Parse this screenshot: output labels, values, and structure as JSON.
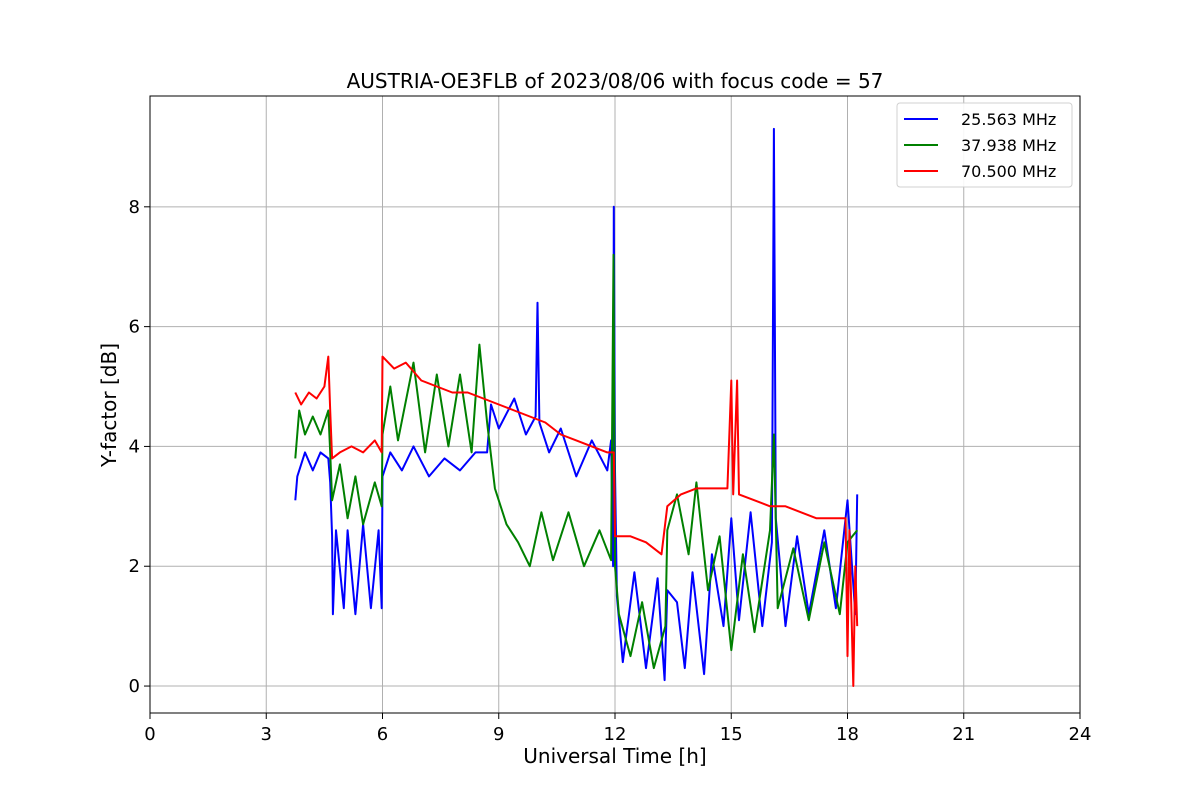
{
  "chart_data": {
    "type": "line",
    "title": "AUSTRIA-OE3FLB of 2023/08/06 with focus code = 57",
    "xlabel": "Universal Time [h]",
    "ylabel": "Y-factor [dB]",
    "xlim": [
      0,
      24
    ],
    "ylim": [
      -0.45,
      9.85
    ],
    "xticks": [
      0,
      3,
      6,
      9,
      12,
      15,
      18,
      21,
      24
    ],
    "xtick_labels": [
      "0",
      "3",
      "6",
      "9",
      "12",
      "15",
      "18",
      "21",
      "24"
    ],
    "yticks": [
      0,
      2,
      4,
      6,
      8
    ],
    "ytick_labels": [
      "0",
      "2",
      "4",
      "6",
      "8"
    ],
    "grid": true,
    "legend_position": "top-right",
    "series": [
      {
        "name": "25.563 MHz",
        "color": "#0000ff",
        "points": [
          [
            3.75,
            3.1
          ],
          [
            3.8,
            3.5
          ],
          [
            4.0,
            3.9
          ],
          [
            4.2,
            3.6
          ],
          [
            4.4,
            3.9
          ],
          [
            4.6,
            3.8
          ],
          [
            4.65,
            3.4
          ],
          [
            4.7,
            2.5
          ],
          [
            4.72,
            1.2
          ],
          [
            4.8,
            2.6
          ],
          [
            5.0,
            1.3
          ],
          [
            5.1,
            2.6
          ],
          [
            5.3,
            1.2
          ],
          [
            5.5,
            2.7
          ],
          [
            5.7,
            1.3
          ],
          [
            5.9,
            2.6
          ],
          [
            5.98,
            1.3
          ],
          [
            6.0,
            3.5
          ],
          [
            6.2,
            3.9
          ],
          [
            6.5,
            3.6
          ],
          [
            6.8,
            4.0
          ],
          [
            7.2,
            3.5
          ],
          [
            7.6,
            3.8
          ],
          [
            8.0,
            3.6
          ],
          [
            8.4,
            3.9
          ],
          [
            8.7,
            3.9
          ],
          [
            8.8,
            4.7
          ],
          [
            9.0,
            4.3
          ],
          [
            9.4,
            4.8
          ],
          [
            9.7,
            4.2
          ],
          [
            9.95,
            4.5
          ],
          [
            10.0,
            6.4
          ],
          [
            10.05,
            4.4
          ],
          [
            10.3,
            3.9
          ],
          [
            10.6,
            4.3
          ],
          [
            11.0,
            3.5
          ],
          [
            11.4,
            4.1
          ],
          [
            11.8,
            3.6
          ],
          [
            11.9,
            4.1
          ],
          [
            11.95,
            2.0
          ],
          [
            11.97,
            8.0
          ],
          [
            12.0,
            3.6
          ],
          [
            12.05,
            1.5
          ],
          [
            12.2,
            0.4
          ],
          [
            12.5,
            1.9
          ],
          [
            12.8,
            0.3
          ],
          [
            13.1,
            1.8
          ],
          [
            13.28,
            0.1
          ],
          [
            13.35,
            1.6
          ],
          [
            13.6,
            1.4
          ],
          [
            13.8,
            0.3
          ],
          [
            14.0,
            1.9
          ],
          [
            14.3,
            0.2
          ],
          [
            14.5,
            2.2
          ],
          [
            14.8,
            1.0
          ],
          [
            15.0,
            2.8
          ],
          [
            15.2,
            1.1
          ],
          [
            15.5,
            2.9
          ],
          [
            15.8,
            1.0
          ],
          [
            16.05,
            2.4
          ],
          [
            16.1,
            9.3
          ],
          [
            16.15,
            2.8
          ],
          [
            16.4,
            1.0
          ],
          [
            16.7,
            2.5
          ],
          [
            17.0,
            1.2
          ],
          [
            17.4,
            2.6
          ],
          [
            17.7,
            1.3
          ],
          [
            18.0,
            3.1
          ],
          [
            18.2,
            1.2
          ],
          [
            18.25,
            3.2
          ]
        ]
      },
      {
        "name": "37.938 MHz",
        "color": "#008000",
        "points": [
          [
            3.75,
            3.8
          ],
          [
            3.85,
            4.6
          ],
          [
            4.0,
            4.2
          ],
          [
            4.2,
            4.5
          ],
          [
            4.4,
            4.2
          ],
          [
            4.6,
            4.6
          ],
          [
            4.65,
            3.9
          ],
          [
            4.7,
            3.1
          ],
          [
            4.9,
            3.7
          ],
          [
            5.1,
            2.8
          ],
          [
            5.3,
            3.5
          ],
          [
            5.5,
            2.7
          ],
          [
            5.8,
            3.4
          ],
          [
            5.98,
            3.0
          ],
          [
            6.0,
            4.2
          ],
          [
            6.2,
            5.0
          ],
          [
            6.4,
            4.1
          ],
          [
            6.8,
            5.4
          ],
          [
            7.1,
            3.9
          ],
          [
            7.4,
            5.2
          ],
          [
            7.7,
            4.0
          ],
          [
            8.0,
            5.2
          ],
          [
            8.3,
            3.9
          ],
          [
            8.5,
            5.7
          ],
          [
            8.7,
            4.4
          ],
          [
            8.9,
            3.3
          ],
          [
            9.2,
            2.7
          ],
          [
            9.5,
            2.4
          ],
          [
            9.8,
            2.0
          ],
          [
            10.1,
            2.9
          ],
          [
            10.4,
            2.1
          ],
          [
            10.8,
            2.9
          ],
          [
            11.2,
            2.0
          ],
          [
            11.6,
            2.6
          ],
          [
            11.9,
            2.1
          ],
          [
            11.96,
            7.2
          ],
          [
            12.0,
            2.0
          ],
          [
            12.1,
            1.2
          ],
          [
            12.4,
            0.5
          ],
          [
            12.7,
            1.4
          ],
          [
            13.0,
            0.3
          ],
          [
            13.3,
            1.0
          ],
          [
            13.35,
            2.6
          ],
          [
            13.6,
            3.2
          ],
          [
            13.9,
            2.2
          ],
          [
            14.1,
            3.4
          ],
          [
            14.4,
            1.6
          ],
          [
            14.7,
            2.5
          ],
          [
            15.0,
            0.6
          ],
          [
            15.3,
            2.2
          ],
          [
            15.6,
            0.9
          ],
          [
            16.0,
            2.6
          ],
          [
            16.1,
            4.2
          ],
          [
            16.2,
            1.3
          ],
          [
            16.6,
            2.3
          ],
          [
            17.0,
            1.1
          ],
          [
            17.4,
            2.4
          ],
          [
            17.8,
            1.2
          ],
          [
            18.0,
            2.4
          ],
          [
            18.25,
            2.6
          ]
        ]
      },
      {
        "name": "70.500 MHz",
        "color": "#ff0000",
        "points": [
          [
            3.75,
            4.9
          ],
          [
            3.9,
            4.7
          ],
          [
            4.1,
            4.9
          ],
          [
            4.3,
            4.8
          ],
          [
            4.5,
            5.0
          ],
          [
            4.6,
            5.5
          ],
          [
            4.65,
            4.6
          ],
          [
            4.7,
            3.8
          ],
          [
            4.9,
            3.9
          ],
          [
            5.2,
            4.0
          ],
          [
            5.5,
            3.9
          ],
          [
            5.8,
            4.1
          ],
          [
            5.98,
            3.9
          ],
          [
            6.0,
            5.5
          ],
          [
            6.3,
            5.3
          ],
          [
            6.6,
            5.4
          ],
          [
            7.0,
            5.1
          ],
          [
            7.4,
            5.0
          ],
          [
            7.8,
            4.9
          ],
          [
            8.2,
            4.9
          ],
          [
            8.6,
            4.8
          ],
          [
            9.0,
            4.7
          ],
          [
            9.4,
            4.6
          ],
          [
            9.8,
            4.5
          ],
          [
            10.2,
            4.4
          ],
          [
            10.6,
            4.2
          ],
          [
            11.0,
            4.1
          ],
          [
            11.4,
            4.0
          ],
          [
            11.8,
            3.9
          ],
          [
            11.97,
            3.9
          ],
          [
            12.0,
            2.5
          ],
          [
            12.4,
            2.5
          ],
          [
            12.8,
            2.4
          ],
          [
            13.2,
            2.2
          ],
          [
            13.35,
            3.0
          ],
          [
            13.7,
            3.2
          ],
          [
            14.1,
            3.3
          ],
          [
            14.5,
            3.3
          ],
          [
            14.9,
            3.3
          ],
          [
            15.0,
            5.1
          ],
          [
            15.05,
            3.2
          ],
          [
            15.15,
            5.1
          ],
          [
            15.2,
            3.2
          ],
          [
            15.6,
            3.1
          ],
          [
            16.0,
            3.0
          ],
          [
            16.4,
            3.0
          ],
          [
            16.8,
            2.9
          ],
          [
            17.2,
            2.8
          ],
          [
            17.6,
            2.8
          ],
          [
            17.95,
            2.8
          ],
          [
            18.0,
            0.5
          ],
          [
            18.05,
            2.6
          ],
          [
            18.15,
            0.0
          ],
          [
            18.2,
            2.0
          ],
          [
            18.25,
            1.0
          ]
        ]
      }
    ]
  }
}
